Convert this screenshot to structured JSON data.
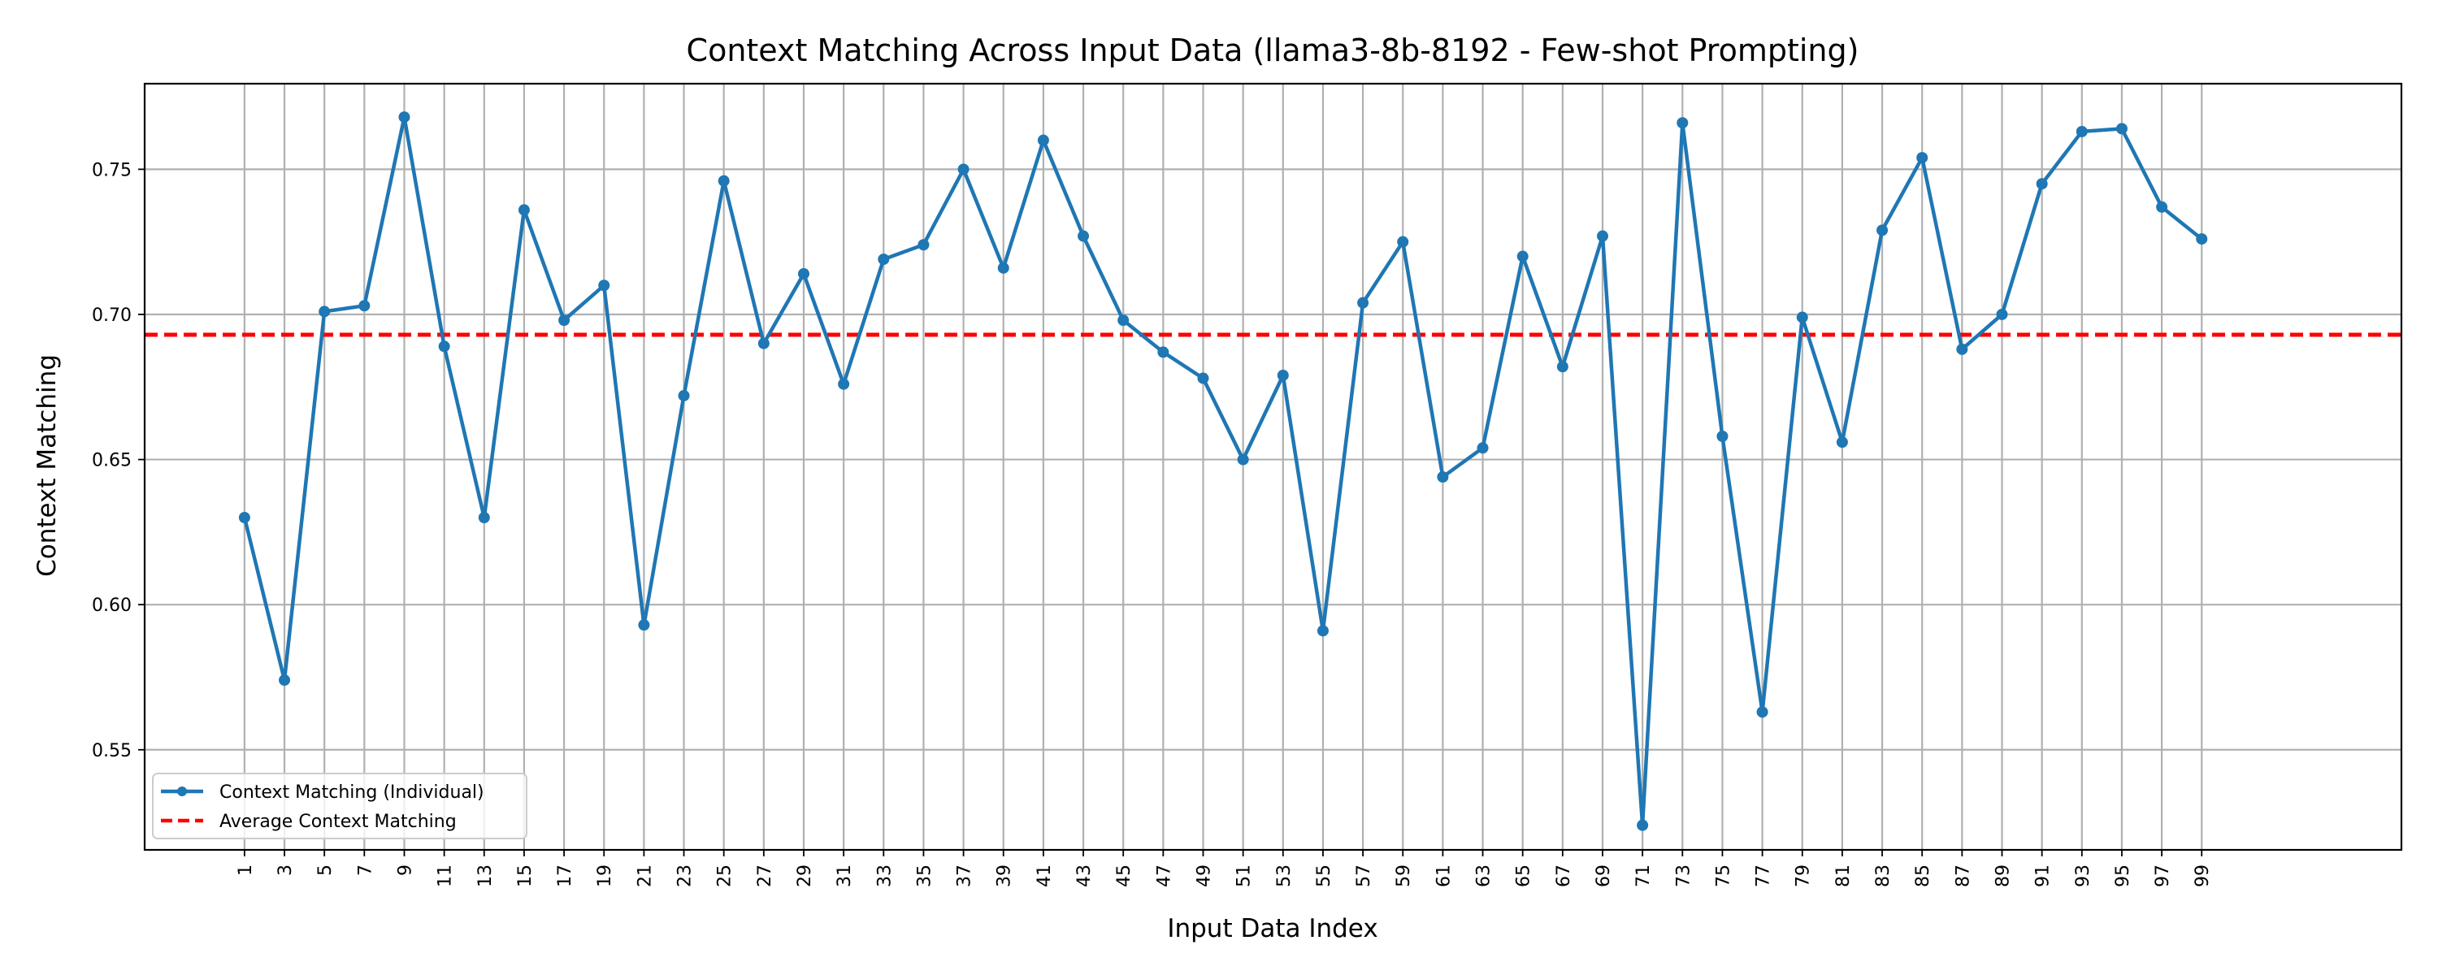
{
  "chart_data": {
    "type": "line",
    "title": "Context Matching Across Input Data (llama3-8b-8192 - Few-shot Prompting)",
    "xlabel": "Input Data Index",
    "ylabel": "Context Matching",
    "xlim": [
      -4,
      109
    ],
    "ylim": [
      0.5155,
      0.7795
    ],
    "grid": true,
    "legend_position": "lower-left",
    "x_ticks": [
      1,
      3,
      5,
      7,
      9,
      11,
      13,
      15,
      17,
      19,
      21,
      23,
      25,
      27,
      29,
      31,
      33,
      35,
      37,
      39,
      41,
      43,
      45,
      47,
      49,
      51,
      53,
      55,
      57,
      59,
      61,
      63,
      65,
      67,
      69,
      71,
      73,
      75,
      77,
      79,
      81,
      83,
      85,
      87,
      89,
      91,
      93,
      95,
      97,
      99
    ],
    "x_tick_labels": [
      "1",
      "3",
      "5",
      "7",
      "9",
      "11",
      "13",
      "15",
      "17",
      "19",
      "21",
      "23",
      "25",
      "27",
      "29",
      "31",
      "33",
      "35",
      "37",
      "39",
      "41",
      "43",
      "45",
      "47",
      "49",
      "51",
      "53",
      "55",
      "57",
      "59",
      "61",
      "63",
      "65",
      "67",
      "69",
      "71",
      "73",
      "75",
      "77",
      "79",
      "81",
      "83",
      "85",
      "87",
      "89",
      "91",
      "93",
      "95",
      "97",
      "99"
    ],
    "y_ticks": [
      0.55,
      0.6,
      0.65,
      0.7,
      0.75
    ],
    "y_tick_labels": [
      "0.55",
      "0.60",
      "0.65",
      "0.70",
      "0.75"
    ],
    "series": [
      {
        "name": "Context Matching (Individual)",
        "color": "#1f77b4",
        "style": "solid-with-markers",
        "x": [
          1,
          3,
          5,
          7,
          9,
          11,
          13,
          15,
          17,
          19,
          21,
          23,
          25,
          27,
          29,
          31,
          33,
          35,
          37,
          39,
          41,
          43,
          45,
          47,
          49,
          51,
          53,
          55,
          57,
          59,
          61,
          63,
          65,
          67,
          69,
          71,
          73,
          75,
          77,
          79,
          81,
          83,
          85,
          87,
          89,
          91,
          93,
          95,
          97,
          99
        ],
        "values": [
          0.63,
          0.574,
          0.701,
          0.703,
          0.768,
          0.689,
          0.63,
          0.736,
          0.698,
          0.71,
          0.593,
          0.672,
          0.746,
          0.69,
          0.714,
          0.676,
          0.719,
          0.724,
          0.75,
          0.716,
          0.76,
          0.727,
          0.698,
          0.687,
          0.678,
          0.65,
          0.679,
          0.591,
          0.704,
          0.725,
          0.644,
          0.654,
          0.72,
          0.682,
          0.727,
          0.524,
          0.766,
          0.658,
          0.563,
          0.699,
          0.656,
          0.729,
          0.754,
          0.688,
          0.7,
          0.745,
          0.763,
          0.764,
          0.737,
          0.726
        ]
      },
      {
        "name": "Average Context Matching",
        "color": "#ff0000",
        "style": "dashed",
        "value": 0.693
      }
    ]
  }
}
